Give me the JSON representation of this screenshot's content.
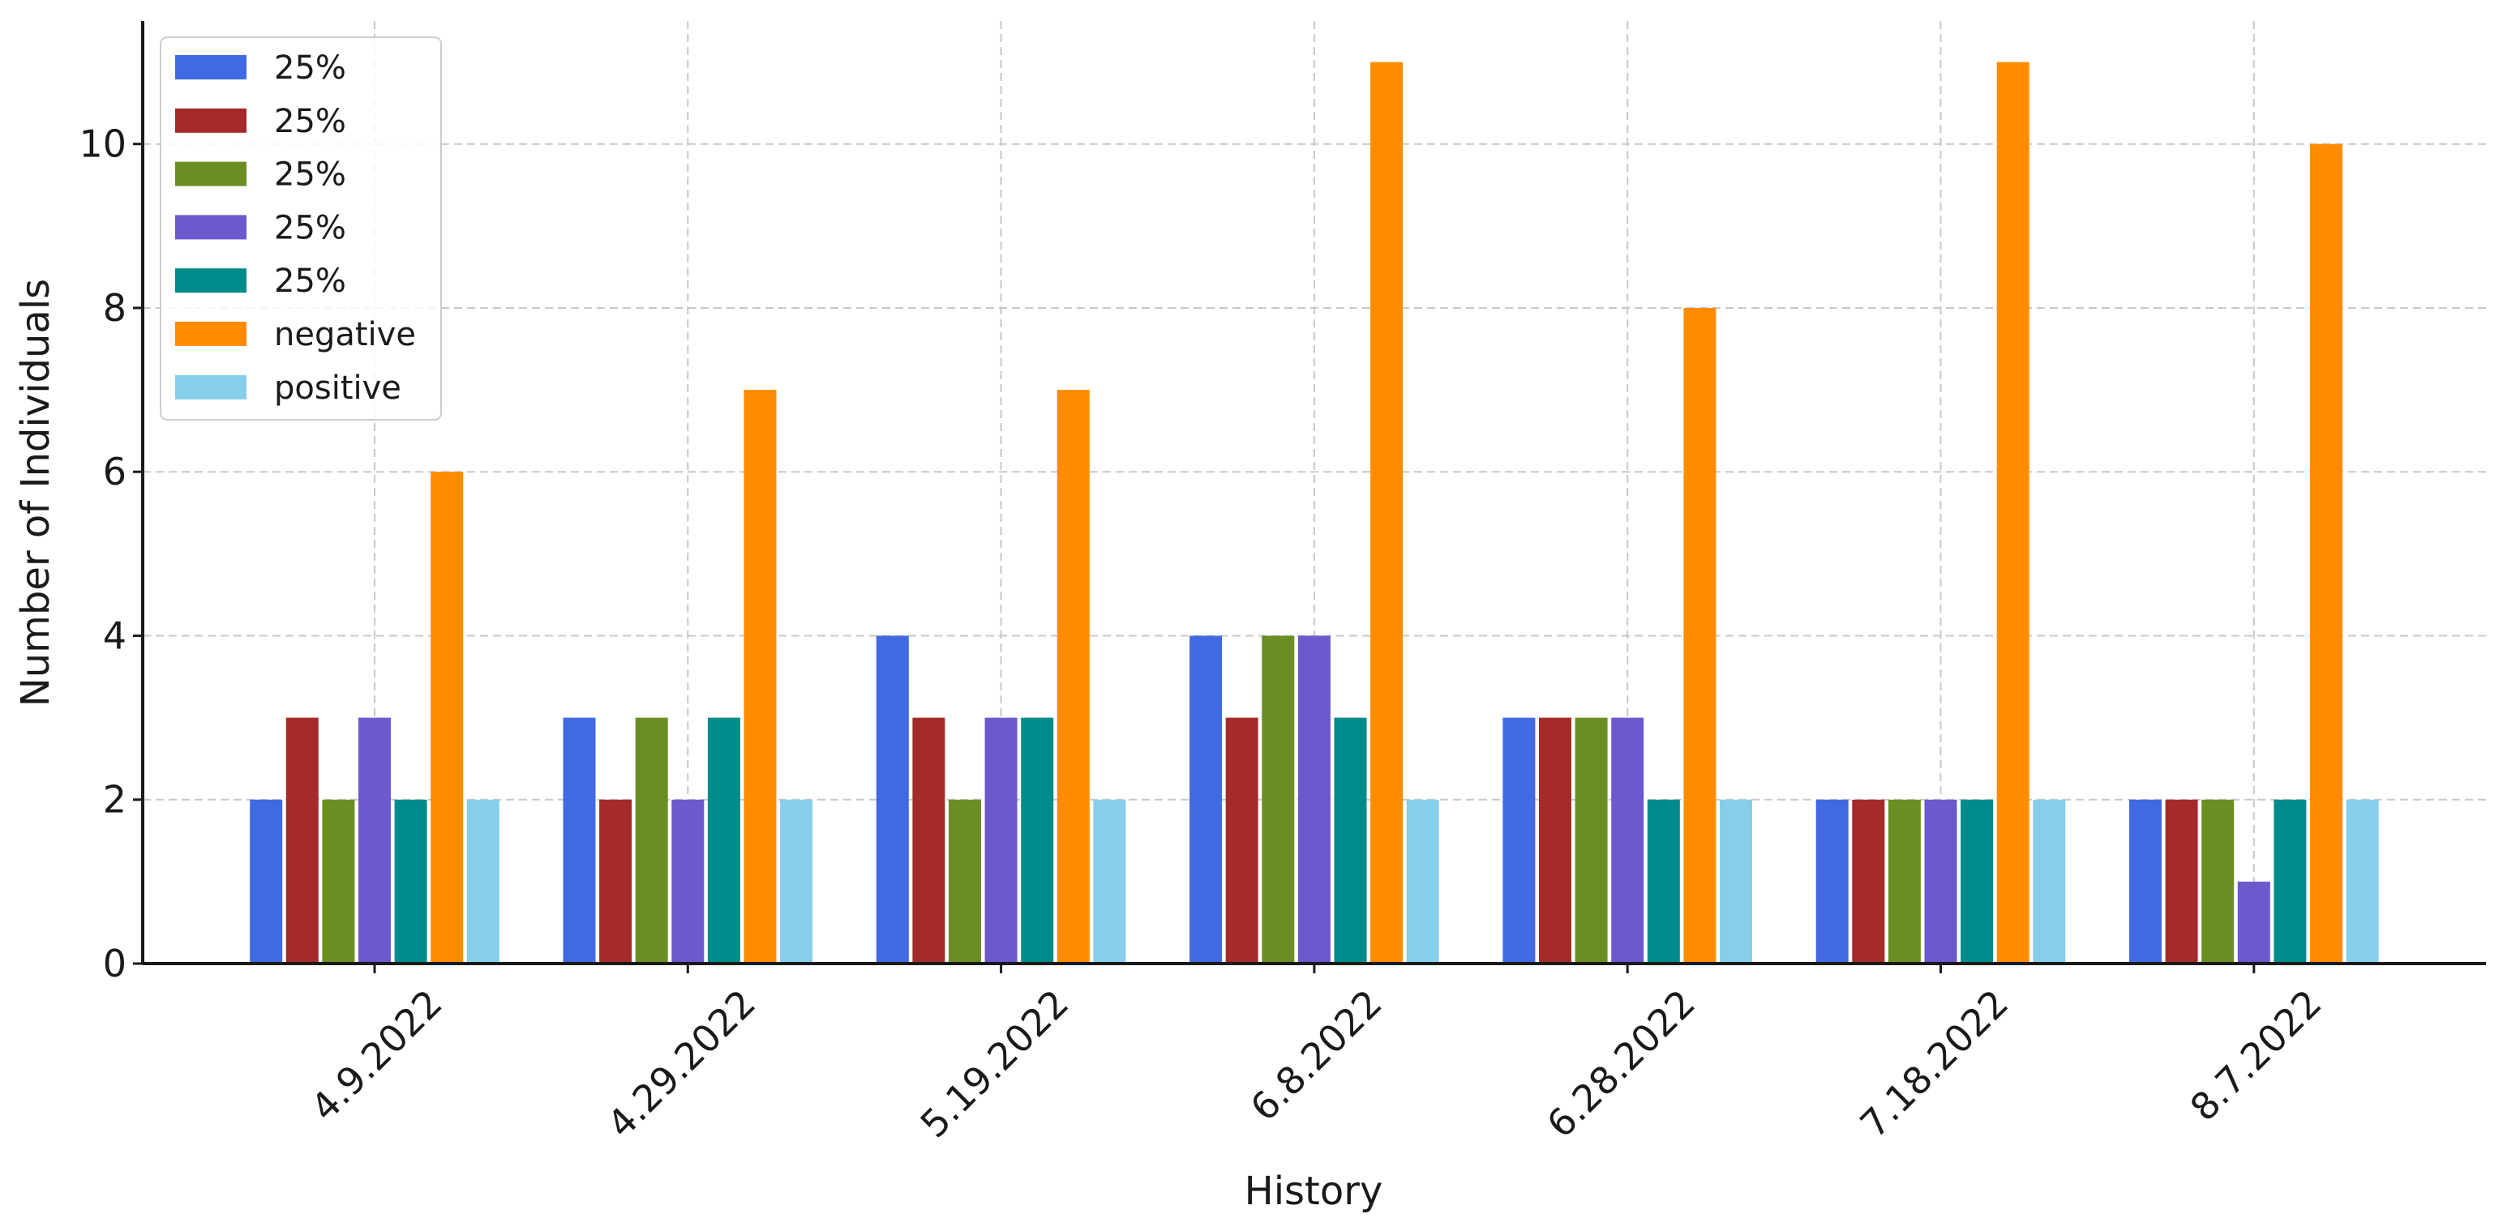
{
  "chart_data": {
    "type": "bar",
    "xlabel": "History",
    "ylabel": "Number of Individuals",
    "ylim": [
      0,
      11.5
    ],
    "yticks": [
      0,
      2,
      4,
      6,
      8,
      10
    ],
    "grid": true,
    "legend_position": "top-left",
    "categories": [
      "4.9.2022",
      "4.29.2022",
      "5.19.2022",
      "6.8.2022",
      "6.28.2022",
      "7.18.2022",
      "8.7.2022"
    ],
    "series": [
      {
        "name": "25%",
        "color": "#4169e1",
        "values": [
          2,
          3,
          4,
          4,
          3,
          2,
          2
        ]
      },
      {
        "name": "25%",
        "color": "#a52a2a",
        "values": [
          3,
          2,
          3,
          3,
          3,
          2,
          2
        ]
      },
      {
        "name": "25%",
        "color": "#6b8e23",
        "values": [
          2,
          3,
          2,
          4,
          3,
          2,
          2
        ]
      },
      {
        "name": "25%",
        "color": "#6a5acd",
        "values": [
          3,
          2,
          3,
          4,
          3,
          2,
          1
        ]
      },
      {
        "name": "25%",
        "color": "#008b8b",
        "values": [
          2,
          3,
          3,
          3,
          2,
          2,
          2
        ]
      },
      {
        "name": "negative",
        "color": "#ff8c00",
        "values": [
          6,
          7,
          7,
          11,
          8,
          11,
          10
        ]
      },
      {
        "name": "positive",
        "color": "#87ceeb",
        "values": [
          2,
          2,
          2,
          2,
          2,
          2,
          2
        ]
      }
    ]
  }
}
